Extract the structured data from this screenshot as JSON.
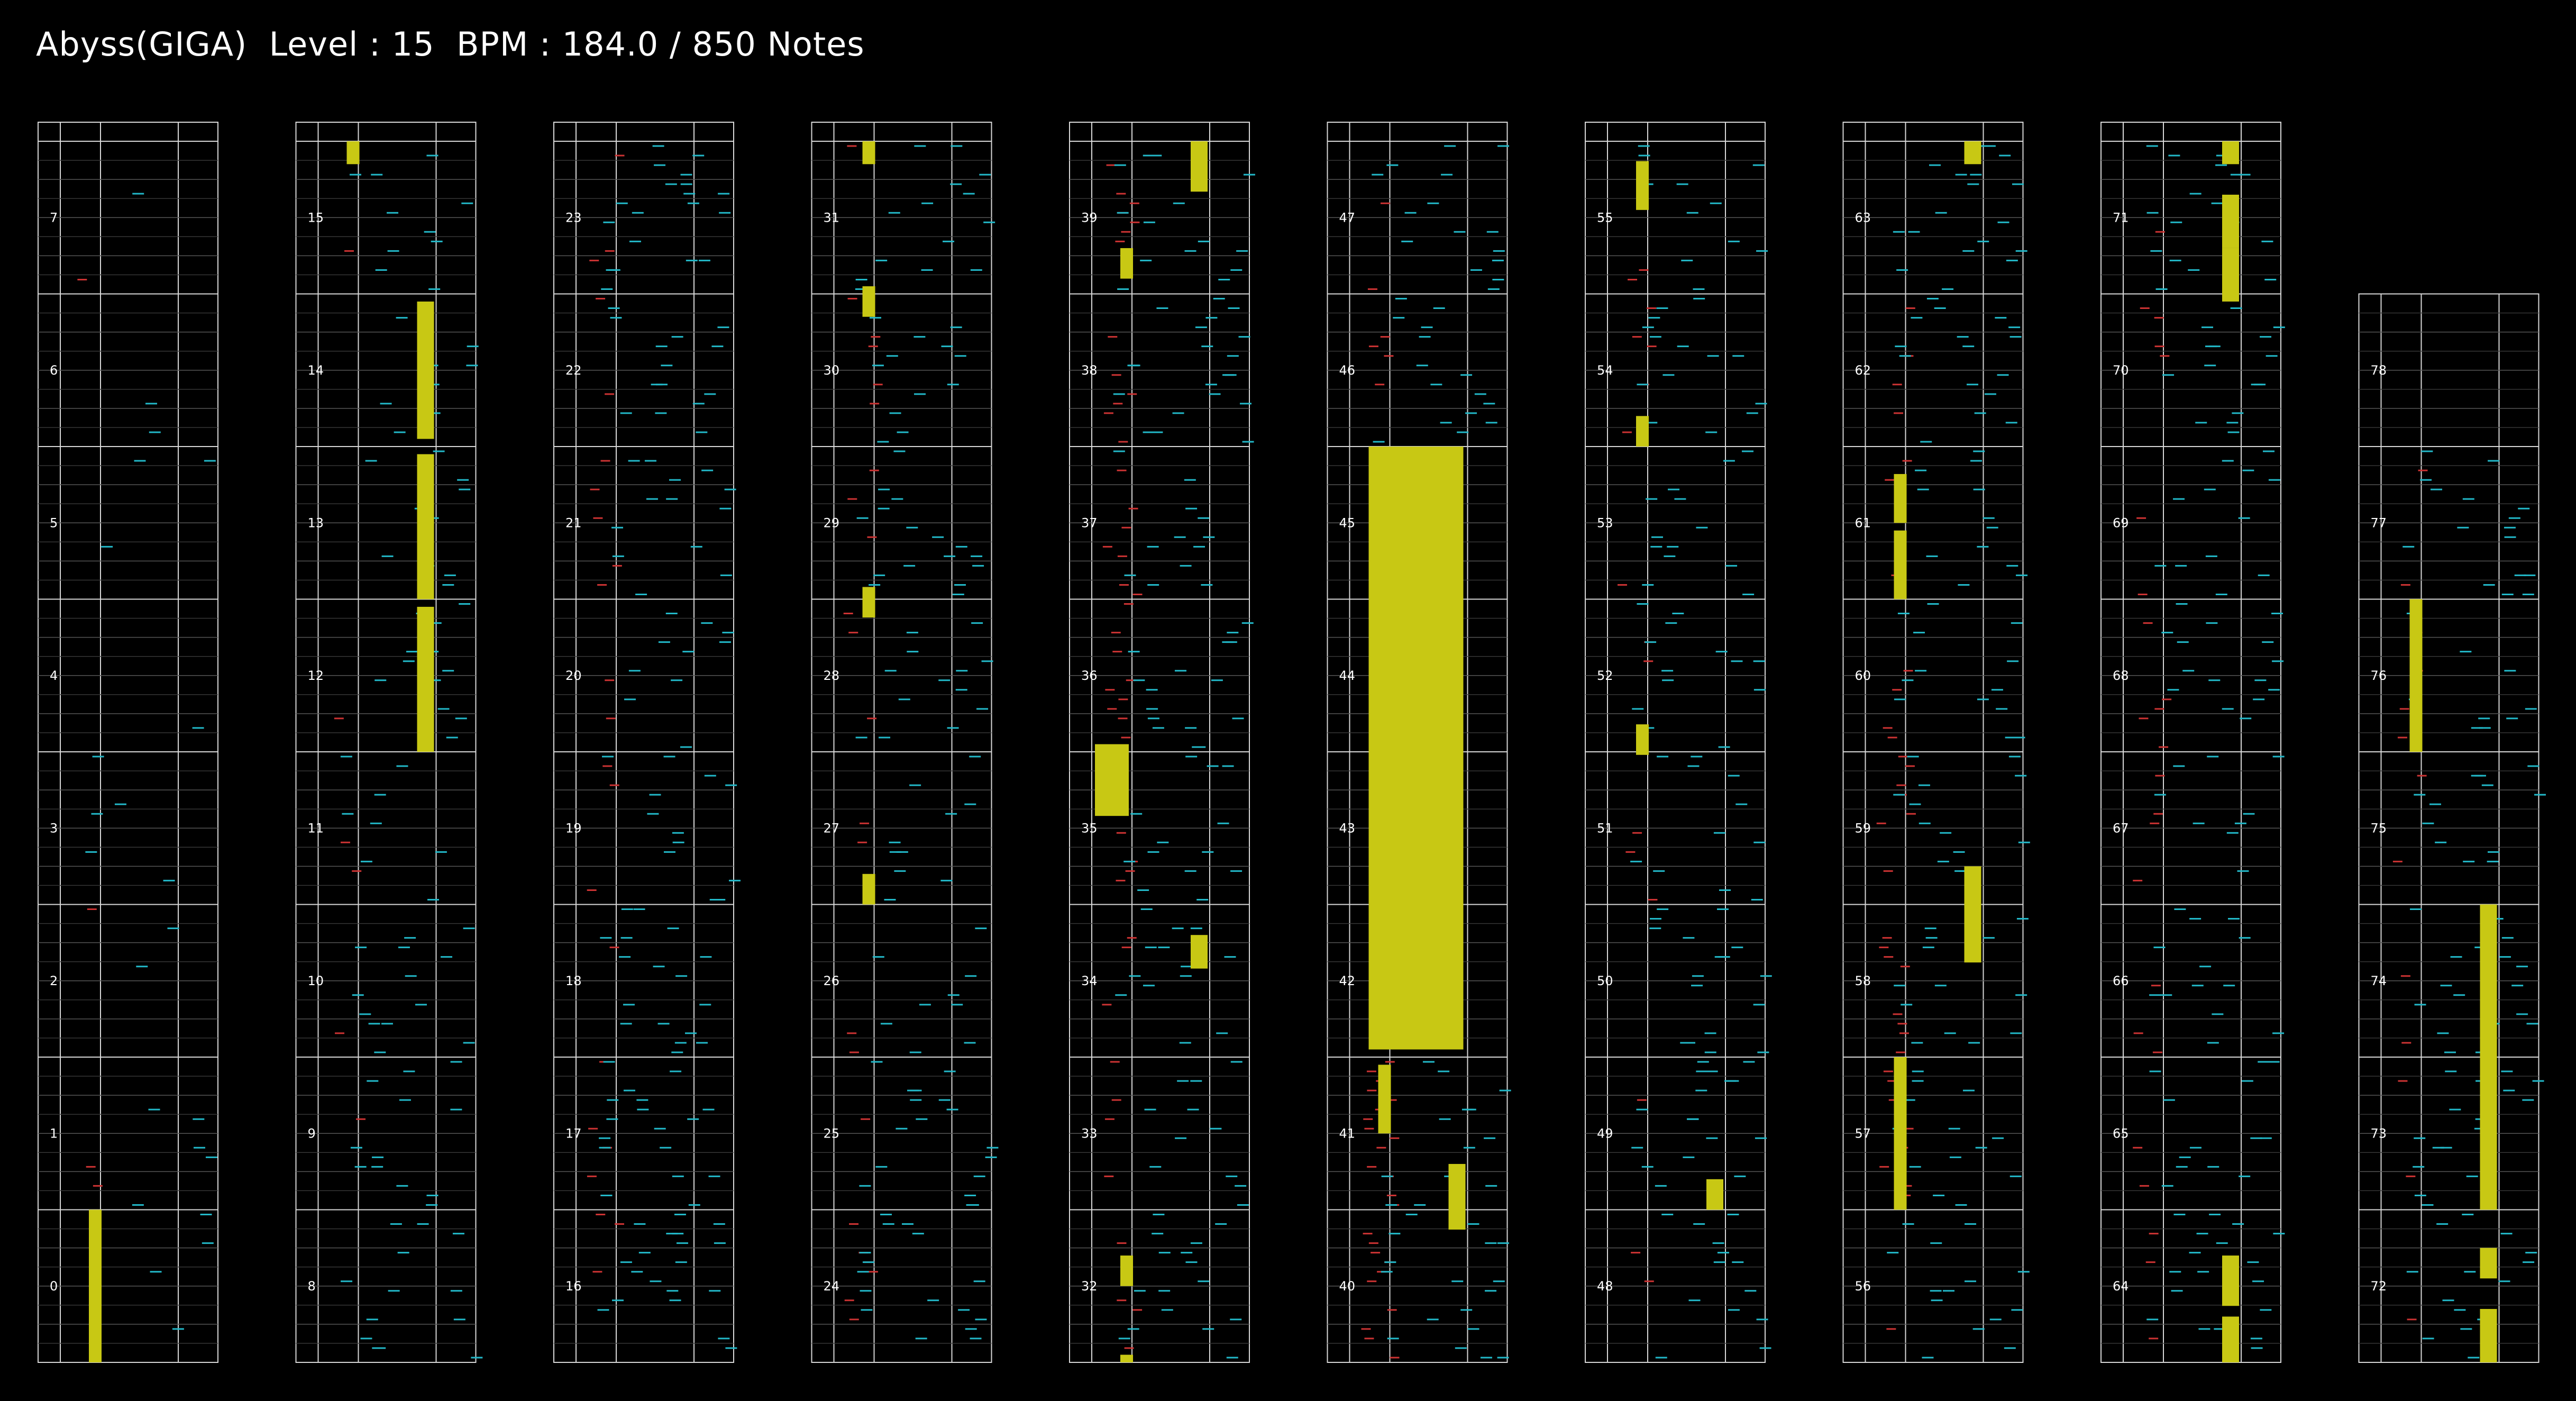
{
  "header": {
    "song": "Abyss(GIGA)",
    "level_label": "Level : 15",
    "bpm_label": "BPM : 184.0",
    "notes_label": "/ 850 Notes"
  },
  "colors": {
    "background": "#000000",
    "frame": "#d8d8d8",
    "subgrid": "#3a3a3a",
    "scratch_note": "#cc3333",
    "key_note": "#22b8c8",
    "long_note": "#c8c814"
  },
  "chart_data": {
    "type": "rhythm-game-chart",
    "measure_count": 79,
    "measures_per_column": 8,
    "measure_order": "bottom-to-top",
    "measure_labels": [
      "0",
      "1",
      "2",
      "3",
      "4",
      "5",
      "6",
      "7",
      "8",
      "9",
      "10",
      "11",
      "12",
      "13",
      "14",
      "15",
      "16",
      "17",
      "18",
      "19",
      "20",
      "21",
      "22",
      "23",
      "24",
      "25",
      "26",
      "27",
      "28",
      "29",
      "30",
      "31",
      "32",
      "33",
      "34",
      "35",
      "36",
      "37",
      "38",
      "39",
      "40",
      "41",
      "42",
      "43",
      "44",
      "45",
      "46",
      "47",
      "48",
      "49",
      "50",
      "51",
      "52",
      "53",
      "54",
      "55",
      "56",
      "57",
      "58",
      "59",
      "60",
      "61",
      "62",
      "63",
      "64",
      "65",
      "66",
      "67",
      "68",
      "69",
      "70",
      "71",
      "72",
      "73",
      "74",
      "75",
      "76",
      "77",
      "78"
    ],
    "lanes": [
      "scratch",
      "key-left",
      "key-center",
      "key-right"
    ],
    "long_notes": [
      {
        "lane": 2,
        "start": 15.85,
        "end": 16.0
      },
      {
        "lane": 3,
        "start": 14.05,
        "end": 14.95
      },
      {
        "lane": 3,
        "start": 13.0,
        "end": 13.95
      },
      {
        "lane": 3,
        "start": 12.0,
        "end": 12.95
      },
      {
        "lane": 2,
        "start": 0.0,
        "end": 1.0,
        "column": 2
      },
      {
        "lane": 2,
        "start": 30.85,
        "end": 31.05
      },
      {
        "lane": 2,
        "start": 28.88,
        "end": 29.08
      },
      {
        "lane": 2,
        "start": 27.0,
        "end": 27.0
      },
      {
        "lane": 1,
        "start": 35.58,
        "end": 36.05
      },
      {
        "lane": 3,
        "start": 34.58,
        "end": 34.8
      },
      {
        "lane": 2,
        "start": 32.5,
        "end": 32.7
      },
      {
        "lane": 2,
        "start": 31.85,
        "end": 32.0
      },
      {
        "lane": 2,
        "start": 42.05,
        "end": 46.0
      },
      {
        "lane": 2,
        "start": 41.5,
        "end": 41.95
      },
      {
        "lane": 3,
        "start": 40.87,
        "end": 41.3
      },
      {
        "lane": 3,
        "start": 39.67,
        "end": 40.0
      },
      {
        "lane": 2,
        "start": 39.1,
        "end": 39.3
      },
      {
        "lane": 2,
        "start": 54.0,
        "end": 54.2
      },
      {
        "lane": 2,
        "start": 51.98,
        "end": 52.18
      },
      {
        "lane": 3,
        "start": 49.0,
        "end": 49.2
      },
      {
        "lane": 3,
        "start": 63.85,
        "end": 64.1
      },
      {
        "lane": 2,
        "start": 61.5,
        "end": 61.82
      },
      {
        "lane": 2,
        "start": 61.0,
        "end": 61.45
      },
      {
        "lane": 3,
        "start": 58.62,
        "end": 59.25
      },
      {
        "lane": 2,
        "start": 57.0,
        "end": 58.0
      },
      {
        "lane": 2,
        "start": 55.55,
        "end": 55.87
      },
      {
        "lane": 3,
        "start": 71.85,
        "end": 72.0
      },
      {
        "lane": 3,
        "start": 64.37,
        "end": 64.7
      },
      {
        "lane": 3,
        "start": 64.0,
        "end": 64.3
      },
      {
        "lane": 2,
        "start": 76.0,
        "end": 77.0
      },
      {
        "lane": 3,
        "start": 73.0,
        "end": 75.0
      },
      {
        "lane": 3,
        "start": 72.55,
        "end": 72.75
      },
      {
        "lane": 3,
        "start": 72.0,
        "end": 72.35
      },
      {
        "lane": 3,
        "start": 71.3,
        "end": 71.65
      },
      {
        "lane": 3,
        "start": 70.95,
        "end": 71.3
      }
    ]
  }
}
